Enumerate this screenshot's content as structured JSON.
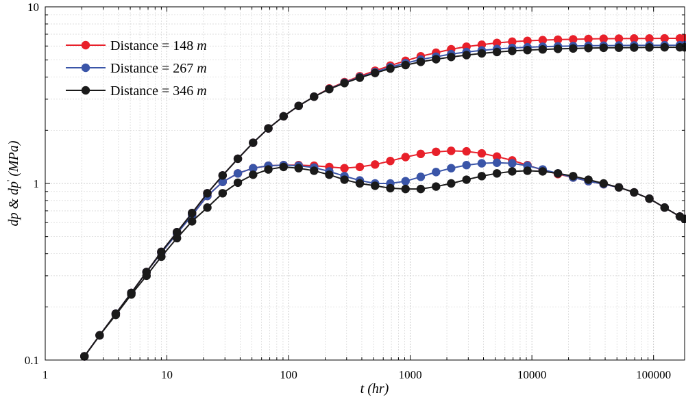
{
  "chart_data": {
    "type": "line",
    "xscale": "log",
    "yscale": "log",
    "xlim": [
      1,
      180000
    ],
    "ylim": [
      0.1,
      10
    ],
    "xlabel": "t (hr)",
    "ylabel_parts": [
      "dp & dp",
      "'",
      " (MPa)"
    ],
    "xticks": [
      1,
      10,
      100,
      1000,
      10000,
      100000
    ],
    "xtick_labels": [
      "1",
      "10",
      "100",
      "1000",
      "10000",
      "100000"
    ],
    "yticks": [
      0.1,
      1,
      10
    ],
    "ytick_labels": [
      "0.1",
      "1",
      "10"
    ],
    "grid": true,
    "legend": "top-left",
    "colors": {
      "red": "#e8202a",
      "blue": "#3a55a8",
      "black": "#1a1a1a"
    },
    "series": [
      {
        "name": "Distance = 148 m",
        "legend_text": "Distance = 148 ",
        "legend_unit": "m",
        "color": "#e8202a",
        "pressure": {
          "x": [
            2.1,
            2.8,
            3.8,
            5.1,
            6.8,
            9.0,
            12.1,
            16.1,
            21.5,
            28.7,
            38.3,
            51.1,
            68.2,
            91,
            121,
            162,
            216,
            288,
            385,
            514,
            686,
            915,
            1220,
            1630,
            2170,
            2900,
            3870,
            5160,
            6890,
            9190,
            12260,
            16360,
            21830,
            29130,
            38860,
            51860,
            69200,
            92330,
            123200,
            164400,
            180000
          ],
          "y": [
            0.105,
            0.138,
            0.183,
            0.24,
            0.315,
            0.41,
            0.53,
            0.68,
            0.88,
            1.11,
            1.38,
            1.7,
            2.05,
            2.4,
            2.75,
            3.1,
            3.45,
            3.75,
            4.05,
            4.35,
            4.65,
            4.95,
            5.25,
            5.5,
            5.75,
            5.95,
            6.1,
            6.25,
            6.35,
            6.42,
            6.48,
            6.52,
            6.55,
            6.58,
            6.6,
            6.61,
            6.62,
            6.62,
            6.63,
            6.63,
            6.63
          ]
        },
        "derivative": {
          "x": [
            2.1,
            2.8,
            3.8,
            5.1,
            6.8,
            9.0,
            12.1,
            16.1,
            21.5,
            28.7,
            38.3,
            51.1,
            68.2,
            91,
            121,
            162,
            216,
            288,
            385,
            514,
            686,
            915,
            1220,
            1630,
            2170,
            2900,
            3870,
            5160,
            6890,
            9190,
            12260,
            16360,
            21830,
            29130,
            38860,
            51860,
            69200,
            92330,
            123200,
            164400,
            180000
          ],
          "y": [
            0.105,
            0.138,
            0.183,
            0.24,
            0.315,
            0.405,
            0.52,
            0.66,
            0.85,
            1.02,
            1.14,
            1.22,
            1.26,
            1.27,
            1.27,
            1.26,
            1.24,
            1.22,
            1.24,
            1.28,
            1.34,
            1.41,
            1.47,
            1.51,
            1.53,
            1.52,
            1.48,
            1.42,
            1.35,
            1.27,
            1.19,
            1.13,
            1.08,
            1.03,
            0.99,
            0.95,
            0.89,
            0.82,
            0.73,
            0.65,
            0.63
          ]
        }
      },
      {
        "name": "Distance = 267 m",
        "legend_text": "Distance = 267 ",
        "legend_unit": "m",
        "color": "#3a55a8",
        "pressure": {
          "x": [
            2.1,
            2.8,
            3.8,
            5.1,
            6.8,
            9.0,
            12.1,
            16.1,
            21.5,
            28.7,
            38.3,
            51.1,
            68.2,
            91,
            121,
            162,
            216,
            288,
            385,
            514,
            686,
            915,
            1220,
            1630,
            2170,
            2900,
            3870,
            5160,
            6890,
            9190,
            12260,
            16360,
            21830,
            29130,
            38860,
            51860,
            69200,
            92330,
            123200,
            164400,
            180000
          ],
          "y": [
            0.105,
            0.138,
            0.183,
            0.24,
            0.315,
            0.41,
            0.53,
            0.68,
            0.88,
            1.11,
            1.38,
            1.7,
            2.05,
            2.4,
            2.75,
            3.1,
            3.43,
            3.72,
            4.0,
            4.27,
            4.55,
            4.8,
            5.03,
            5.22,
            5.4,
            5.55,
            5.67,
            5.77,
            5.85,
            5.9,
            5.95,
            5.98,
            6.0,
            6.02,
            6.03,
            6.04,
            6.05,
            6.05,
            6.06,
            6.06,
            6.06
          ]
        },
        "derivative": {
          "x": [
            2.1,
            2.8,
            3.8,
            5.1,
            6.8,
            9.0,
            12.1,
            16.1,
            21.5,
            28.7,
            38.3,
            51.1,
            68.2,
            91,
            121,
            162,
            216,
            288,
            385,
            514,
            686,
            915,
            1220,
            1630,
            2170,
            2900,
            3870,
            5160,
            6890,
            9190,
            12260,
            16360,
            21830,
            29130,
            38860,
            51860,
            69200,
            92330,
            123200,
            164400,
            180000
          ],
          "y": [
            0.105,
            0.138,
            0.183,
            0.24,
            0.315,
            0.405,
            0.52,
            0.66,
            0.85,
            1.02,
            1.14,
            1.22,
            1.26,
            1.27,
            1.26,
            1.23,
            1.17,
            1.1,
            1.04,
            1.0,
            1.0,
            1.03,
            1.09,
            1.16,
            1.22,
            1.27,
            1.3,
            1.31,
            1.3,
            1.26,
            1.2,
            1.14,
            1.08,
            1.03,
            0.99,
            0.95,
            0.89,
            0.82,
            0.73,
            0.65,
            0.63
          ]
        }
      },
      {
        "name": "Distance = 346 m",
        "legend_text": "Distance = 346 ",
        "legend_unit": "m",
        "color": "#1a1a1a",
        "pressure": {
          "x": [
            2.1,
            2.8,
            3.8,
            5.1,
            6.8,
            9.0,
            12.1,
            16.1,
            21.5,
            28.7,
            38.3,
            51.1,
            68.2,
            91,
            121,
            162,
            216,
            288,
            385,
            514,
            686,
            915,
            1220,
            1630,
            2170,
            2900,
            3870,
            5160,
            6890,
            9190,
            12260,
            16360,
            21830,
            29130,
            38860,
            51860,
            69200,
            92330,
            123200,
            164400,
            180000
          ],
          "y": [
            0.105,
            0.138,
            0.183,
            0.24,
            0.315,
            0.41,
            0.53,
            0.68,
            0.88,
            1.11,
            1.38,
            1.7,
            2.05,
            2.4,
            2.75,
            3.1,
            3.42,
            3.7,
            3.97,
            4.22,
            4.47,
            4.68,
            4.88,
            5.05,
            5.2,
            5.33,
            5.45,
            5.55,
            5.63,
            5.69,
            5.74,
            5.78,
            5.81,
            5.84,
            5.86,
            5.87,
            5.88,
            5.89,
            5.9,
            5.9,
            5.9
          ]
        },
        "derivative": {
          "x": [
            2.1,
            2.8,
            3.8,
            5.1,
            6.8,
            9.0,
            12.1,
            16.1,
            21.5,
            28.7,
            38.3,
            51.1,
            68.2,
            91,
            121,
            162,
            216,
            288,
            385,
            514,
            686,
            915,
            1220,
            1630,
            2170,
            2900,
            3870,
            5160,
            6890,
            9190,
            12260,
            16360,
            21830,
            29130,
            38860,
            51860,
            69200,
            92330,
            123200,
            164400,
            180000
          ],
          "y": [
            0.105,
            0.138,
            0.18,
            0.235,
            0.3,
            0.385,
            0.49,
            0.61,
            0.73,
            0.88,
            1.01,
            1.12,
            1.2,
            1.24,
            1.22,
            1.18,
            1.12,
            1.05,
            1.0,
            0.97,
            0.94,
            0.93,
            0.93,
            0.96,
            1.0,
            1.05,
            1.1,
            1.14,
            1.17,
            1.18,
            1.17,
            1.14,
            1.1,
            1.05,
            1.0,
            0.95,
            0.89,
            0.82,
            0.73,
            0.65,
            0.63
          ]
        }
      }
    ]
  }
}
